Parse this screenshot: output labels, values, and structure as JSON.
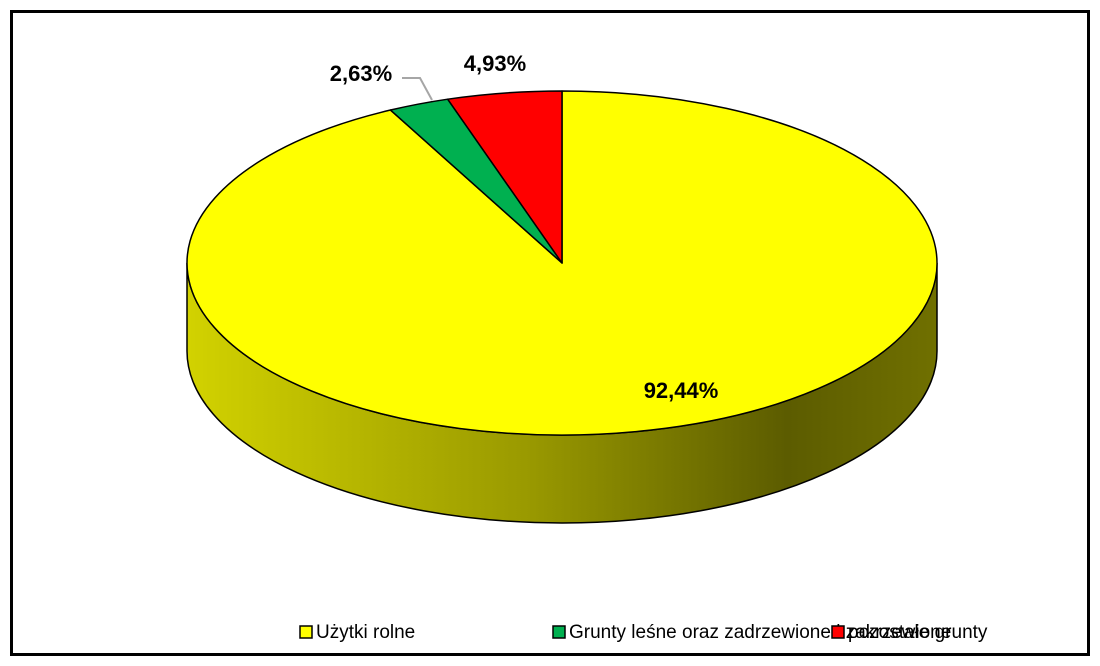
{
  "chart_data": {
    "type": "pie",
    "categories": [
      "Użytki rolne",
      "Grunty leśne oraz zadrzewione i zakrzewione",
      "pozostałe grunty"
    ],
    "values": [
      92.44,
      2.63,
      4.93
    ],
    "value_labels": [
      "92,44%",
      "2,63%",
      "4,93%"
    ],
    "colors": [
      "#ffff00",
      "#00b050",
      "#ff0000"
    ],
    "legend": "bottom"
  }
}
